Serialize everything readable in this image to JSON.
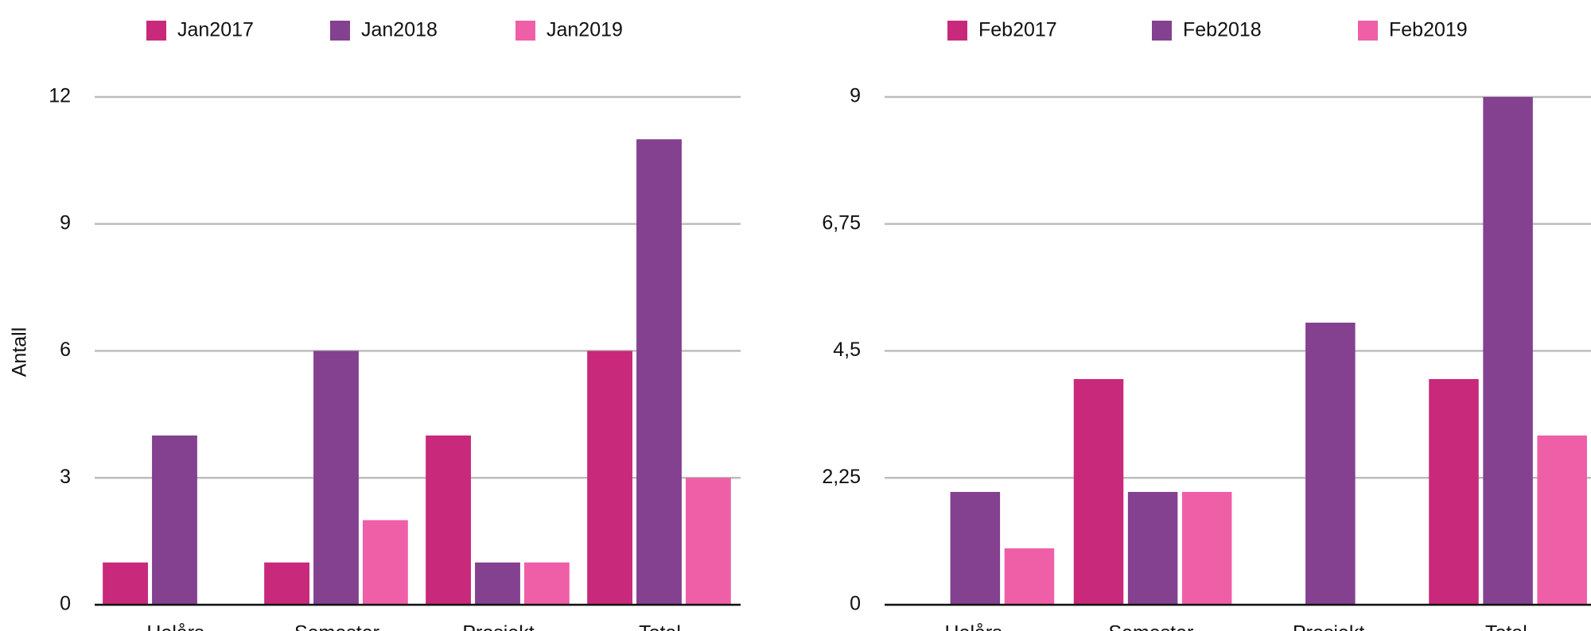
{
  "chart_data": [
    {
      "type": "bar",
      "ylabel": "Antall",
      "categories": [
        "Helårs",
        "Semester",
        "Prosjekt",
        "Total"
      ],
      "series": [
        {
          "name": "Jan2017",
          "color": "#c9297b",
          "values": [
            1,
            1,
            4,
            6
          ]
        },
        {
          "name": "Jan2018",
          "color": "#83418f",
          "values": [
            4,
            6,
            1,
            11
          ]
        },
        {
          "name": "Jan2019",
          "color": "#ef5fa7",
          "values": [
            0,
            2,
            1,
            3
          ]
        }
      ],
      "ylim": [
        0,
        12
      ],
      "yticks": [
        0,
        3,
        6,
        9,
        12
      ],
      "grid": true
    },
    {
      "type": "bar",
      "categories": [
        "Helårs",
        "Semester",
        "Prosjekt",
        "Total"
      ],
      "series": [
        {
          "name": "Feb2017",
          "color": "#c9297b",
          "values": [
            0,
            4,
            0,
            4
          ]
        },
        {
          "name": "Feb2018",
          "color": "#83418f",
          "values": [
            2,
            2,
            5,
            9
          ]
        },
        {
          "name": "Feb2019",
          "color": "#ef5fa7",
          "values": [
            1,
            2,
            0,
            3
          ]
        }
      ],
      "ylim": [
        0,
        9
      ],
      "yticks": [
        0,
        {
          "value": 2.25,
          "label": "2,25"
        },
        {
          "value": 4.5,
          "label": "4,5"
        },
        {
          "value": 6.75,
          "label": "6,75"
        },
        9
      ],
      "grid": true
    }
  ]
}
